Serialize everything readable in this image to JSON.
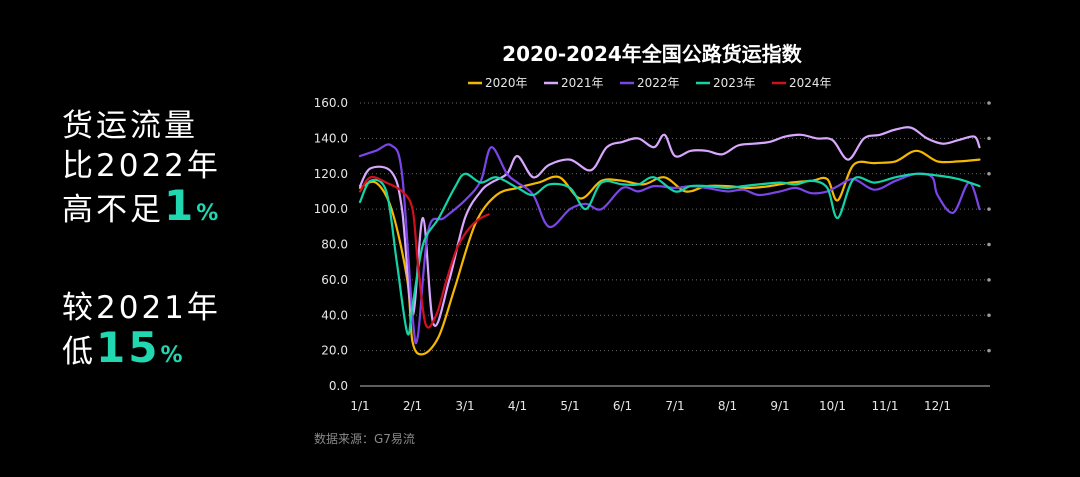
{
  "side": {
    "block1": {
      "l1": "货运流量",
      "l2": "比2022年",
      "l3": "高不足",
      "num": "1",
      "unit": "%"
    },
    "block2": {
      "l1": "较2021年",
      "l2": "低",
      "num": "15",
      "unit": "%"
    }
  },
  "source": "数据来源：G7易流",
  "chart_data": {
    "type": "line",
    "title": "2020-2024年全国公路货运指数",
    "xlabel": "",
    "ylabel": "",
    "ylim": [
      0,
      160
    ],
    "xlim": [
      1,
      13
    ],
    "yticks": [
      "0.0",
      "20.0",
      "40.0",
      "60.0",
      "80.0",
      "100.0",
      "120.0",
      "140.0",
      "160.0"
    ],
    "xticks": [
      "1/1",
      "2/1",
      "3/1",
      "4/1",
      "5/1",
      "6/1",
      "7/1",
      "8/1",
      "9/1",
      "10/1",
      "11/1",
      "12/1"
    ],
    "grid": "horizontal dotted",
    "legend": "top",
    "series": [
      {
        "name": "2020年",
        "color": "#f5b800",
        "x": [
          1.0,
          1.3,
          1.6,
          1.9,
          2.0,
          2.2,
          2.5,
          2.8,
          3.2,
          3.6,
          4.0,
          4.4,
          4.8,
          5.2,
          5.6,
          6.0,
          6.4,
          6.8,
          7.2,
          7.6,
          8.0,
          8.4,
          8.8,
          9.2,
          9.6,
          9.9,
          10.1,
          10.4,
          10.8,
          11.2,
          11.6,
          12.0,
          12.4,
          12.8
        ],
        "y": [
          112,
          115,
          100,
          60,
          25,
          18,
          28,
          55,
          92,
          108,
          112,
          115,
          118,
          106,
          116,
          116,
          114,
          118,
          110,
          113,
          113,
          112,
          113,
          115,
          116,
          117,
          105,
          125,
          126,
          127,
          133,
          127,
          127,
          128
        ]
      },
      {
        "name": "2021年",
        "color": "#d8a8ff",
        "x": [
          1.0,
          1.2,
          1.6,
          1.8,
          2.0,
          2.2,
          2.4,
          2.7,
          3.0,
          3.3,
          3.5,
          3.8,
          4.0,
          4.3,
          4.6,
          5.0,
          5.4,
          5.7,
          6.0,
          6.3,
          6.6,
          6.8,
          7.0,
          7.3,
          7.6,
          7.9,
          8.2,
          8.5,
          8.8,
          9.1,
          9.4,
          9.7,
          10.0,
          10.3,
          10.6,
          10.9,
          11.2,
          11.5,
          11.8,
          12.1,
          12.4,
          12.7,
          12.8
        ],
        "y": [
          113,
          123,
          121,
          100,
          40,
          95,
          35,
          60,
          95,
          110,
          115,
          120,
          130,
          118,
          125,
          128,
          122,
          135,
          138,
          140,
          135,
          142,
          130,
          133,
          133,
          131,
          136,
          137,
          138,
          141,
          142,
          140,
          139,
          128,
          140,
          142,
          145,
          146,
          140,
          137,
          139,
          141,
          135
        ]
      },
      {
        "name": "2022年",
        "color": "#7b45e8",
        "x": [
          1.0,
          1.3,
          1.6,
          1.8,
          2.0,
          2.1,
          2.3,
          2.6,
          3.0,
          3.3,
          3.5,
          3.8,
          4.0,
          4.3,
          4.6,
          5.0,
          5.3,
          5.6,
          6.0,
          6.3,
          6.6,
          7.0,
          7.3,
          7.6,
          8.0,
          8.3,
          8.6,
          9.0,
          9.3,
          9.6,
          9.9,
          10.1,
          10.4,
          10.8,
          11.2,
          11.6,
          11.9,
          12.0,
          12.3,
          12.6,
          12.8
        ],
        "y": [
          130,
          133,
          136,
          120,
          40,
          28,
          88,
          95,
          105,
          116,
          135,
          120,
          115,
          108,
          90,
          100,
          103,
          100,
          112,
          110,
          113,
          112,
          113,
          112,
          110,
          111,
          108,
          110,
          112,
          109,
          110,
          113,
          117,
          111,
          116,
          120,
          118,
          108,
          98,
          115,
          100
        ]
      },
      {
        "name": "2023年",
        "color": "#12d4a8",
        "x": [
          1.0,
          1.2,
          1.5,
          1.7,
          1.9,
          2.0,
          2.2,
          2.5,
          2.8,
          3.0,
          3.3,
          3.6,
          4.0,
          4.3,
          4.6,
          5.0,
          5.3,
          5.6,
          6.0,
          6.3,
          6.6,
          7.0,
          7.3,
          7.6,
          8.0,
          8.3,
          8.6,
          9.0,
          9.3,
          9.6,
          9.9,
          10.1,
          10.4,
          10.8,
          11.2,
          11.6,
          12.0,
          12.4,
          12.8
        ],
        "y": [
          104,
          116,
          110,
          70,
          30,
          45,
          80,
          95,
          112,
          120,
          115,
          118,
          112,
          108,
          114,
          112,
          100,
          115,
          114,
          114,
          118,
          110,
          113,
          113,
          112,
          113,
          114,
          115,
          114,
          116,
          112,
          95,
          117,
          115,
          118,
          120,
          119,
          117,
          113
        ]
      },
      {
        "name": "2024年",
        "color": "#d0101e",
        "x": [
          1.0,
          1.2,
          1.5,
          1.8,
          2.0,
          2.1,
          2.25,
          2.45,
          2.65,
          2.85,
          3.05,
          3.25,
          3.45
        ],
        "y": [
          110,
          118,
          115,
          110,
          100,
          70,
          35,
          40,
          60,
          78,
          88,
          94,
          97
        ]
      }
    ]
  }
}
